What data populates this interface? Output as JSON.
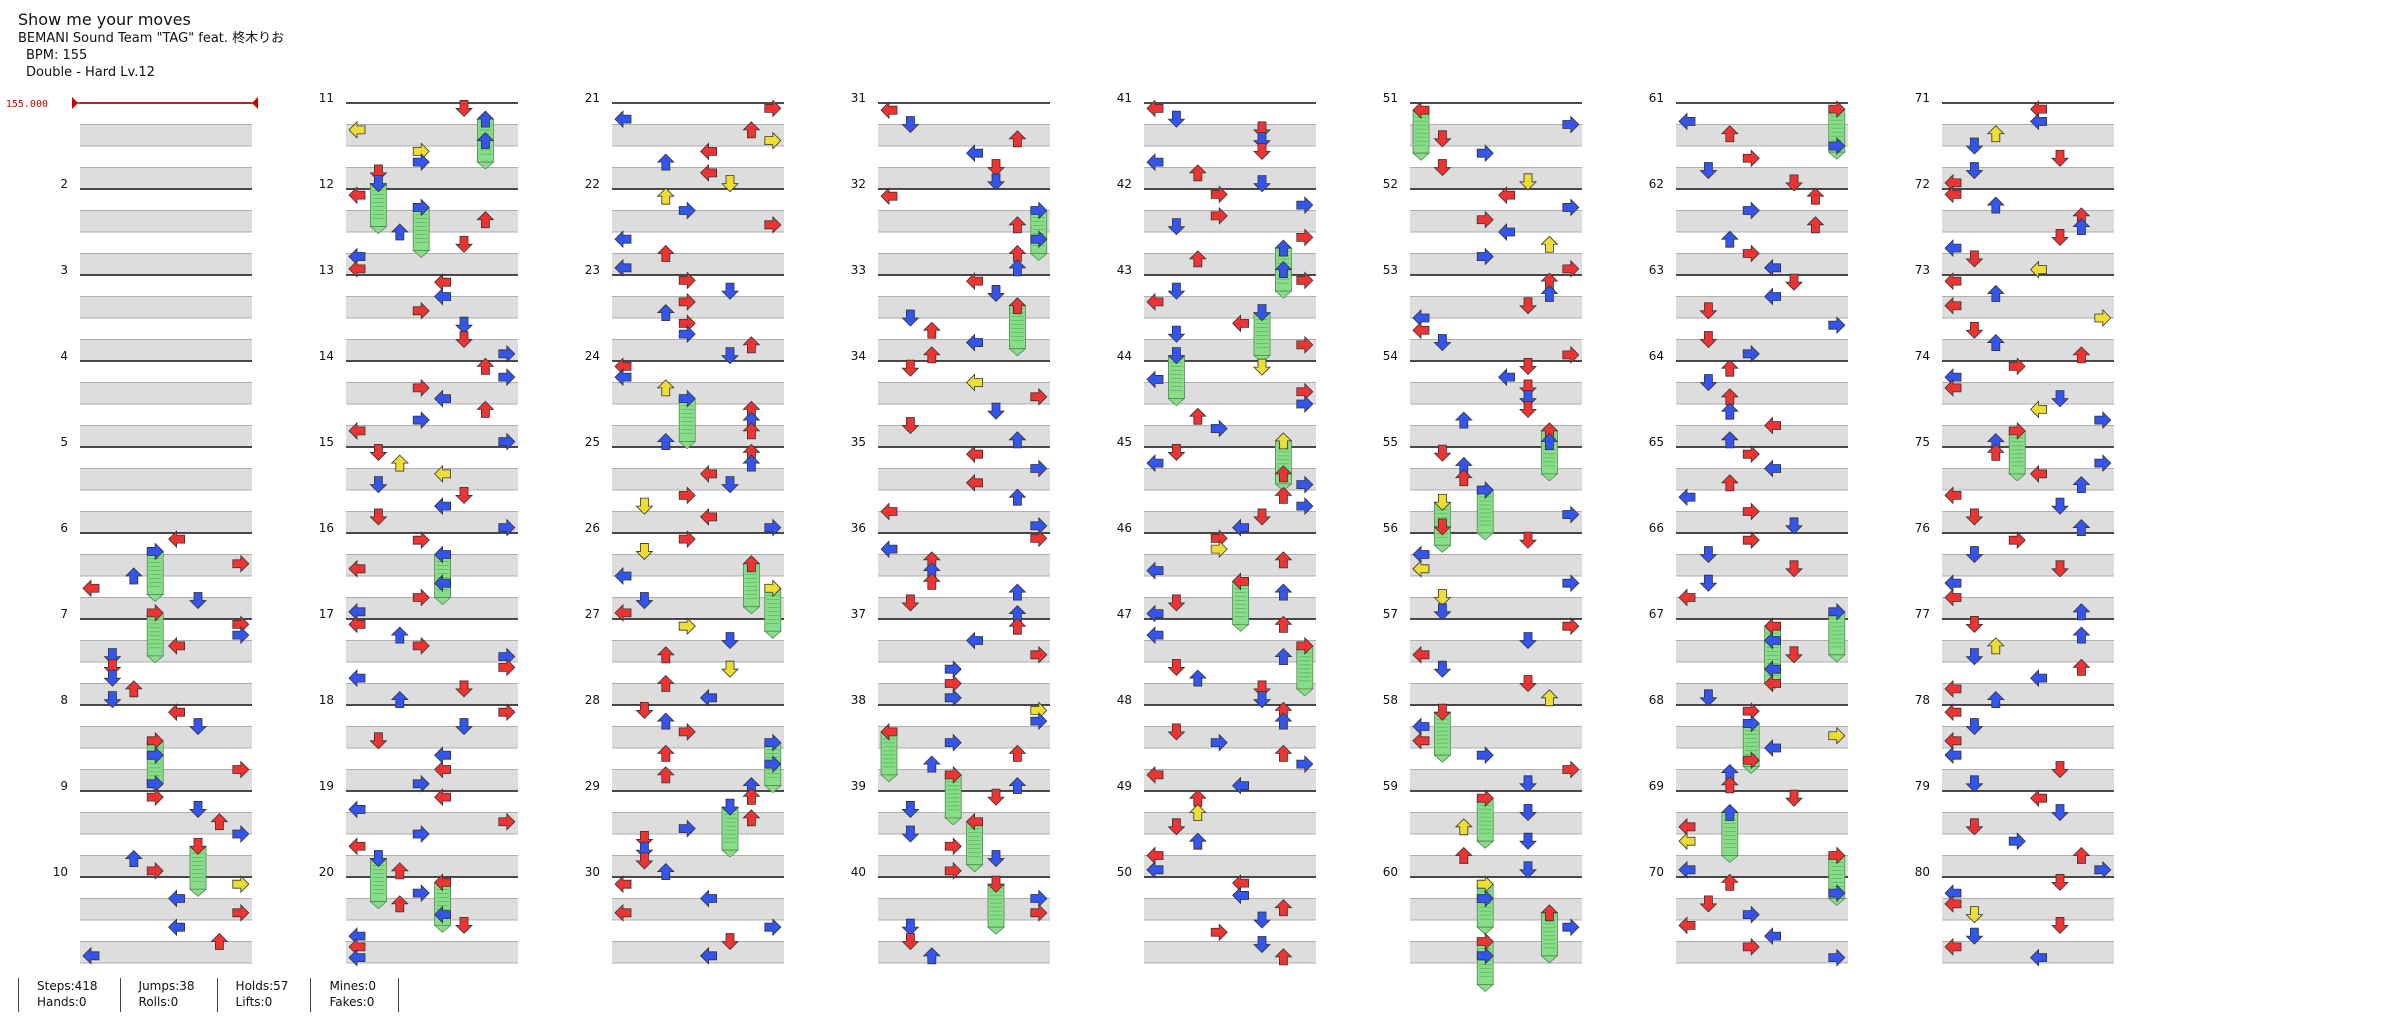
{
  "header": {
    "title": "Show me your moves",
    "artist": "BEMANI Sound Team \"TAG\" feat. 柊木りお",
    "bpm_line": "BPM: 155",
    "difficulty_line": "Double - Hard  Lv.12"
  },
  "chart": {
    "bpm_marker": "155.000",
    "measure_labels": [
      "2",
      "3",
      "4",
      "5",
      "6",
      "7",
      "8",
      "9",
      "10",
      "11",
      "12",
      "13",
      "14",
      "15",
      "16",
      "17",
      "18",
      "19",
      "20",
      "21",
      "22",
      "23",
      "24",
      "25",
      "26",
      "27",
      "28",
      "29",
      "30",
      "31",
      "32",
      "33",
      "34",
      "35",
      "36",
      "37",
      "38",
      "39",
      "40",
      "41",
      "42",
      "43",
      "44",
      "45",
      "46",
      "47",
      "48",
      "49",
      "50",
      "51",
      "52",
      "53",
      "54",
      "55",
      "56",
      "57",
      "58",
      "59",
      "60",
      "61",
      "62",
      "63",
      "64",
      "65",
      "66",
      "67",
      "68",
      "69",
      "70",
      "71",
      "72",
      "73",
      "74",
      "75",
      "76",
      "77",
      "78",
      "79",
      "80"
    ],
    "colors": {
      "quarter": "#ee3333",
      "eighth": "#3355ee",
      "sixteenth": "#eedd33",
      "hold": "#88dd88",
      "bpm": "#cc0000"
    }
  },
  "stats": {
    "steps": "Steps:418",
    "hands": "Hands:0",
    "jumps": "Jumps:38",
    "rolls": "Rolls:0",
    "holds": "Holds:57",
    "lifts": "Lifts:0",
    "mines": "Mines:0",
    "fakes": "Fakes:0"
  }
}
